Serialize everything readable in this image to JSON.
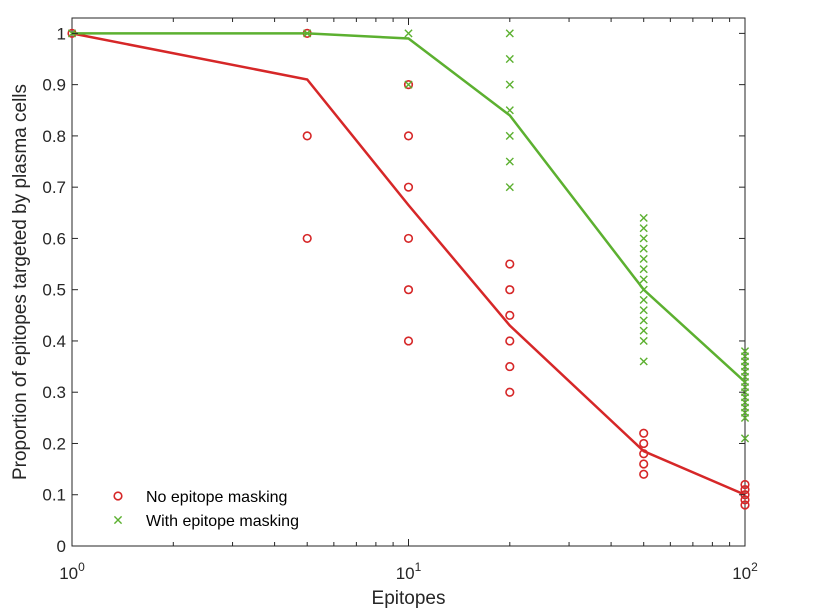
{
  "chart_data": {
    "type": "scatter",
    "title": "",
    "xlabel": "Epitopes",
    "ylabel": "Proportion of epitopes targeted by plasma cells",
    "xscale": "log",
    "xlim": [
      1,
      100
    ],
    "ylim": [
      0,
      1.03
    ],
    "x_ticks": [
      {
        "value": 1,
        "base": "10",
        "exp": "0"
      },
      {
        "value": 10,
        "base": "10",
        "exp": "1"
      },
      {
        "value": 100,
        "base": "10",
        "exp": "2"
      }
    ],
    "y_ticks": [
      {
        "value": 0,
        "label": "0"
      },
      {
        "value": 0.1,
        "label": "0.1"
      },
      {
        "value": 0.2,
        "label": "0.2"
      },
      {
        "value": 0.3,
        "label": "0.3"
      },
      {
        "value": 0.4,
        "label": "0.4"
      },
      {
        "value": 0.5,
        "label": "0.5"
      },
      {
        "value": 0.6,
        "label": "0.6"
      },
      {
        "value": 0.7,
        "label": "0.7"
      },
      {
        "value": 0.8,
        "label": "0.8"
      },
      {
        "value": 0.9,
        "label": "0.9"
      },
      {
        "value": 1,
        "label": "1"
      }
    ],
    "grid": false,
    "legend_position": "bottom-left",
    "series": [
      {
        "name": "No epitope masking",
        "color": "#d62728",
        "marker": "circle",
        "points": [
          [
            1,
            1.0
          ],
          [
            5,
            1.0
          ],
          [
            5,
            0.8
          ],
          [
            5,
            0.6
          ],
          [
            10,
            0.9
          ],
          [
            10,
            0.8
          ],
          [
            10,
            0.7
          ],
          [
            10,
            0.6
          ],
          [
            10,
            0.5
          ],
          [
            10,
            0.4
          ],
          [
            20,
            0.55
          ],
          [
            20,
            0.5
          ],
          [
            20,
            0.45
          ],
          [
            20,
            0.4
          ],
          [
            20,
            0.35
          ],
          [
            20,
            0.3
          ],
          [
            50,
            0.22
          ],
          [
            50,
            0.2
          ],
          [
            50,
            0.18
          ],
          [
            50,
            0.16
          ],
          [
            50,
            0.14
          ],
          [
            100,
            0.12
          ],
          [
            100,
            0.11
          ],
          [
            100,
            0.1
          ],
          [
            100,
            0.09
          ],
          [
            100,
            0.08
          ]
        ],
        "mean_line": {
          "x": [
            1,
            5,
            10,
            20,
            50,
            100
          ],
          "y": [
            1.0,
            0.91,
            0.665,
            0.43,
            0.185,
            0.1
          ]
        }
      },
      {
        "name": "With epitope masking",
        "color": "#5cb030",
        "marker": "x",
        "points": [
          [
            1,
            1.0
          ],
          [
            5,
            1.0
          ],
          [
            10,
            1.0
          ],
          [
            10,
            0.9
          ],
          [
            20,
            1.0
          ],
          [
            20,
            0.95
          ],
          [
            20,
            0.9
          ],
          [
            20,
            0.85
          ],
          [
            20,
            0.8
          ],
          [
            20,
            0.75
          ],
          [
            20,
            0.7
          ],
          [
            50,
            0.64
          ],
          [
            50,
            0.62
          ],
          [
            50,
            0.6
          ],
          [
            50,
            0.58
          ],
          [
            50,
            0.56
          ],
          [
            50,
            0.54
          ],
          [
            50,
            0.52
          ],
          [
            50,
            0.5
          ],
          [
            50,
            0.48
          ],
          [
            50,
            0.46
          ],
          [
            50,
            0.44
          ],
          [
            50,
            0.42
          ],
          [
            50,
            0.4
          ],
          [
            50,
            0.36
          ],
          [
            100,
            0.38
          ],
          [
            100,
            0.37
          ],
          [
            100,
            0.36
          ],
          [
            100,
            0.35
          ],
          [
            100,
            0.34
          ],
          [
            100,
            0.33
          ],
          [
            100,
            0.32
          ],
          [
            100,
            0.31
          ],
          [
            100,
            0.3
          ],
          [
            100,
            0.29
          ],
          [
            100,
            0.28
          ],
          [
            100,
            0.27
          ],
          [
            100,
            0.26
          ],
          [
            100,
            0.25
          ],
          [
            100,
            0.21
          ]
        ],
        "mean_line": {
          "x": [
            1,
            5,
            10,
            20,
            50,
            100
          ],
          "y": [
            1.0,
            1.0,
            0.99,
            0.84,
            0.5,
            0.32
          ]
        }
      }
    ]
  }
}
